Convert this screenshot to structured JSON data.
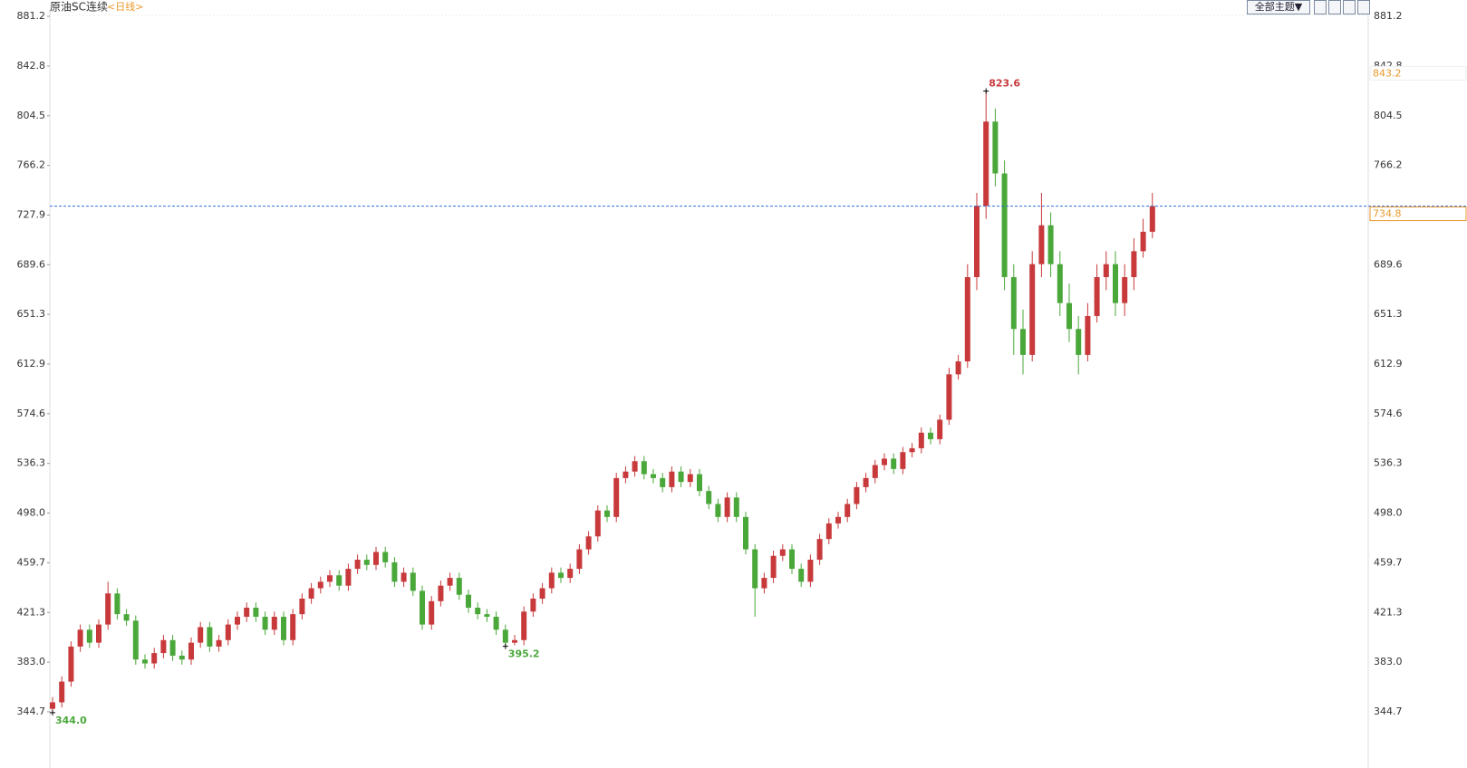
{
  "chart_data": {
    "type": "candlestick",
    "title": "原油SC连续",
    "period": "<日线>",
    "theme_button": "全部主题▼",
    "ylim": [
      320.9,
      886.8
    ],
    "yticks": [
      881.2,
      842.8,
      804.5,
      766.2,
      727.9,
      689.6,
      651.3,
      612.9,
      574.6,
      536.3,
      {
        "value": 498,
        "label": "498.0"
      },
      459.7,
      421.3,
      {
        "value": 383,
        "label": "383.0"
      },
      344.7
    ],
    "grid": false,
    "up_color": "#c8393b",
    "down_color": "#4aa83a",
    "open": [
      347,
      352,
      368,
      395,
      408,
      398,
      412,
      436,
      420,
      415,
      385,
      382,
      390,
      400,
      388,
      385,
      398,
      410,
      395,
      400,
      412,
      418,
      425,
      418,
      408,
      418,
      400,
      420,
      432,
      440,
      445,
      450,
      442,
      455,
      462,
      458,
      468,
      460,
      445,
      452,
      438,
      412,
      430,
      442,
      448,
      435,
      425,
      420,
      418,
      408,
      398,
      400,
      422,
      432,
      440,
      452,
      448,
      455,
      470,
      480,
      500,
      495,
      525,
      530,
      538,
      528,
      525,
      518,
      530,
      522,
      528,
      515,
      505,
      495,
      510,
      495,
      470,
      440,
      448,
      465,
      470,
      455,
      445,
      462,
      478,
      490,
      495,
      505,
      518,
      525,
      535,
      540,
      532,
      545,
      548,
      560,
      555,
      570,
      605,
      615,
      680,
      735,
      800,
      760,
      680,
      640,
      620,
      690,
      720,
      690,
      660,
      640,
      620,
      650,
      680,
      690,
      660,
      680,
      700,
      715
    ],
    "high": [
      356,
      372,
      399,
      412,
      412,
      416,
      445,
      440,
      424,
      419,
      389,
      394,
      404,
      404,
      392,
      402,
      414,
      414,
      404,
      416,
      422,
      429,
      429,
      422,
      422,
      422,
      424,
      436,
      444,
      449,
      454,
      454,
      459,
      466,
      466,
      472,
      472,
      464,
      456,
      456,
      442,
      434,
      446,
      452,
      452,
      439,
      429,
      424,
      422,
      412,
      404,
      426,
      436,
      444,
      456,
      456,
      459,
      474,
      484,
      504,
      504,
      529,
      534,
      542,
      542,
      532,
      529,
      534,
      534,
      532,
      532,
      519,
      509,
      514,
      514,
      499,
      474,
      452,
      469,
      474,
      474,
      459,
      466,
      482,
      494,
      499,
      509,
      522,
      529,
      539,
      544,
      544,
      549,
      552,
      564,
      564,
      574,
      610,
      620,
      690,
      745,
      823.6,
      810,
      770,
      690,
      655,
      700,
      745,
      730,
      700,
      675,
      650,
      660,
      690,
      700,
      700,
      690,
      710,
      725,
      745
    ],
    "low": [
      344.0,
      348,
      364,
      391,
      394,
      394,
      408,
      416,
      411,
      381,
      378,
      378,
      386,
      384,
      381,
      381,
      394,
      391,
      391,
      396,
      408,
      414,
      414,
      404,
      404,
      396,
      396,
      416,
      428,
      436,
      441,
      438,
      438,
      451,
      454,
      454,
      456,
      441,
      441,
      434,
      408,
      408,
      426,
      438,
      431,
      421,
      416,
      414,
      404,
      395.2,
      396,
      396,
      418,
      428,
      436,
      444,
      444,
      451,
      466,
      476,
      491,
      491,
      521,
      526,
      524,
      521,
      514,
      514,
      518,
      518,
      511,
      501,
      491,
      491,
      491,
      466,
      418,
      436,
      444,
      461,
      451,
      441,
      441,
      458,
      474,
      486,
      491,
      501,
      514,
      521,
      531,
      528,
      528,
      541,
      544,
      551,
      551,
      566,
      601,
      610,
      670,
      725,
      750,
      670,
      620,
      605,
      615,
      680,
      680,
      650,
      630,
      605,
      615,
      645,
      670,
      650,
      650,
      670,
      695,
      710
    ],
    "close": [
      352,
      368,
      395,
      408,
      398,
      412,
      436,
      420,
      415,
      385,
      382,
      390,
      400,
      388,
      385,
      398,
      410,
      395,
      400,
      412,
      418,
      425,
      418,
      408,
      418,
      400,
      420,
      432,
      440,
      445,
      450,
      442,
      455,
      462,
      458,
      468,
      460,
      445,
      452,
      438,
      412,
      430,
      442,
      448,
      435,
      425,
      420,
      418,
      408,
      398,
      400,
      422,
      432,
      440,
      452,
      448,
      455,
      470,
      480,
      500,
      495,
      525,
      530,
      538,
      528,
      525,
      518,
      530,
      522,
      528,
      515,
      505,
      495,
      510,
      495,
      470,
      440,
      448,
      465,
      470,
      455,
      445,
      462,
      478,
      490,
      495,
      505,
      518,
      525,
      535,
      540,
      532,
      545,
      548,
      560,
      555,
      570,
      605,
      615,
      680,
      735,
      800,
      760,
      680,
      640,
      620,
      690,
      720,
      690,
      660,
      640,
      620,
      650,
      680,
      690,
      660,
      680,
      700,
      715,
      734.8
    ],
    "markers": [
      {
        "index": 101,
        "value": 823.6,
        "label": "823.6",
        "color": "#c8393b"
      },
      {
        "index": 49,
        "value": 395.2,
        "label": "395.2",
        "color": "#4aa83a"
      },
      {
        "index": 0,
        "value": 344,
        "label": "344.0",
        "color": "#4aa83a"
      }
    ],
    "last_price": 734.8,
    "last_price_color": "#2f6fd6",
    "ref_price": 843.2,
    "ref_price_color": "#e89a2c"
  }
}
